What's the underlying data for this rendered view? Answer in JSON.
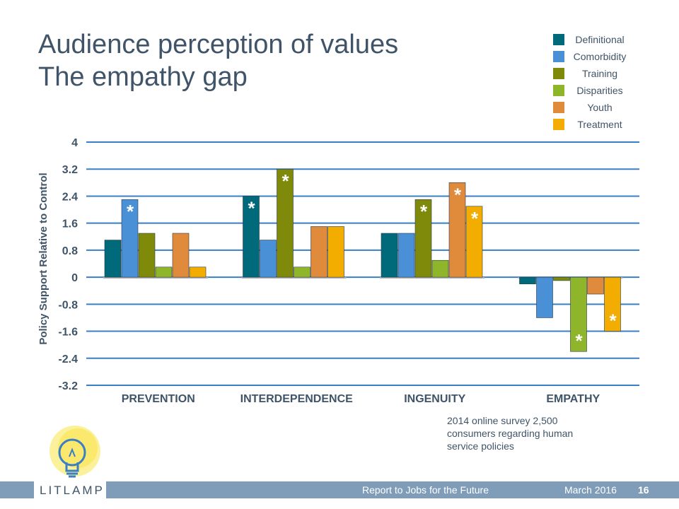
{
  "slide": {
    "title_line1": "Audience perception of values",
    "title_line2": "The empathy gap",
    "note": "2014 online survey 2,500 consumers regarding human service policies",
    "logo_text": "LITLAMP",
    "footer_report": "Report to Jobs for the Future",
    "footer_date": "March  2016",
    "footer_page": "16"
  },
  "legend": [
    {
      "label": "Definitional",
      "color": "#006a7a"
    },
    {
      "label": "Comorbidity",
      "color": "#4a90d6"
    },
    {
      "label": "Training",
      "color": "#7f8a0a"
    },
    {
      "label": "Disparities",
      "color": "#8fb52a"
    },
    {
      "label": "Youth",
      "color": "#e08a3c"
    },
    {
      "label": "Treatment",
      "color": "#f2ad00"
    }
  ],
  "chart_data": {
    "type": "bar",
    "title": "",
    "xlabel": "",
    "ylabel": "Policy Support Relative to Control",
    "ylim": [
      -3.2,
      4
    ],
    "yticks": [
      4,
      3.2,
      2.4,
      1.6,
      0.8,
      0,
      -0.8,
      -1.6,
      -2.4,
      -3.2
    ],
    "ytick_labels": [
      "4",
      "3.2",
      "2.4",
      "1.6",
      "0.8",
      "0",
      "-0.8",
      "-1.6",
      "-2.4",
      "-3.2"
    ],
    "grid": true,
    "legend_position": "top-right",
    "categories": [
      "PREVENTION",
      "INTERDEPENDENCE",
      "INGENUITY",
      "EMPATHY"
    ],
    "series": [
      {
        "name": "Definitional",
        "values": [
          1.1,
          2.4,
          1.3,
          -0.2
        ],
        "significant": [
          false,
          true,
          false,
          false
        ]
      },
      {
        "name": "Comorbidity",
        "values": [
          2.3,
          1.1,
          1.3,
          -1.2
        ],
        "significant": [
          true,
          false,
          false,
          false
        ]
      },
      {
        "name": "Training",
        "values": [
          1.3,
          3.2,
          2.3,
          -0.1
        ],
        "significant": [
          false,
          true,
          true,
          false
        ]
      },
      {
        "name": "Disparities",
        "values": [
          0.3,
          0.3,
          0.5,
          -2.2
        ],
        "significant": [
          false,
          false,
          false,
          true
        ]
      },
      {
        "name": "Youth",
        "values": [
          1.3,
          1.5,
          2.8,
          -0.5
        ],
        "significant": [
          false,
          false,
          true,
          false
        ]
      },
      {
        "name": "Treatment",
        "values": [
          0.3,
          1.5,
          2.1,
          -1.6
        ],
        "significant": [
          false,
          false,
          true,
          true
        ]
      }
    ],
    "colors": [
      "#006a7a",
      "#4a90d6",
      "#7f8a0a",
      "#8fb52a",
      "#e08a3c",
      "#f2ad00"
    ],
    "significance_marker": "*"
  }
}
